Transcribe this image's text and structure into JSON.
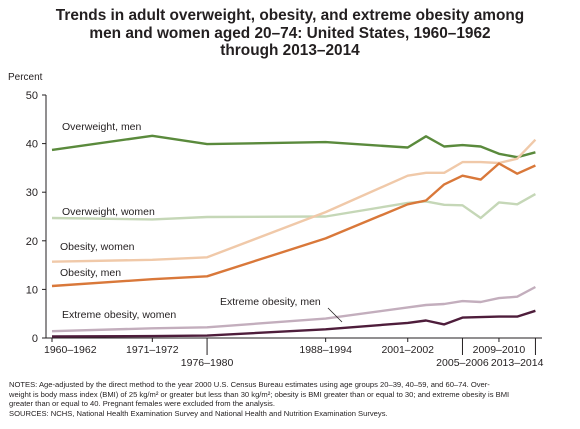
{
  "title_lines": [
    "Trends in adult overweight, obesity, and extreme obesity among",
    "men and women aged 20–74: United States, 1960–1962",
    "through 2013–2014"
  ],
  "notes_lines": [
    "NOTES: Age-adjusted by the direct method to the year 2000 U.S. Census Bureau estimates using age groups 20–39, 40–59, and 60–74. Over-",
    "weight is body mass index (BMI) of 25 kg/m² or greater but less than 30 kg/m²; obesity is BMI greater than or equal to 30; and extreme obesity is BMI",
    "greater than or equal to 40. Pregnant females were excluded from the analysis.",
    "SOURCES: NCHS, National Health Examination Survey and National Health and Nutrition Examination Surveys."
  ],
  "chart_data": {
    "type": "line",
    "title": "Trends in adult overweight, obesity, and extreme obesity among men and women aged 20–74: United States, 1960–1962 through 2013–2014",
    "ylabel": "Percent",
    "xlabel": "",
    "ylim": [
      0,
      50
    ],
    "yticks": [
      0,
      10,
      20,
      30,
      40,
      50
    ],
    "grid": false,
    "x": [
      1961,
      1972,
      1978,
      1991,
      2000,
      2002,
      2004,
      2006,
      2008,
      2010,
      2012,
      2014
    ],
    "xtick_labels": [
      {
        "x": 1961,
        "label": "1960–1962",
        "row": 1
      },
      {
        "x": 1972,
        "label": "1971–1972",
        "row": 1
      },
      {
        "x": 1978,
        "label": "1976–1980",
        "row": 2
      },
      {
        "x": 1991,
        "label": "1988–1994",
        "row": 1
      },
      {
        "x": 2000,
        "label": "2001–2002",
        "row": 1
      },
      {
        "x": 2006,
        "label": "2005–2006",
        "row": 2
      },
      {
        "x": 2010,
        "label": "2009–2010",
        "row": 1
      },
      {
        "x": 2014,
        "label": "2013–2014",
        "row": 2
      }
    ],
    "series": [
      {
        "name": "Overweight, men",
        "color": "#5a8a3c",
        "values": [
          38.7,
          41.6,
          39.9,
          40.3,
          39.2,
          41.5,
          39.4,
          39.7,
          39.4,
          37.9,
          37.2,
          38.2
        ]
      },
      {
        "name": "Overweight, women",
        "color": "#c5d7b7",
        "values": [
          24.7,
          24.4,
          24.9,
          25.0,
          27.8,
          28.1,
          27.4,
          27.3,
          24.7,
          27.9,
          27.5,
          29.6
        ]
      },
      {
        "name": "Obesity, women",
        "color": "#f0c9a9",
        "values": [
          15.7,
          16.1,
          16.6,
          25.9,
          33.4,
          34.0,
          34.0,
          36.2,
          36.2,
          36.0,
          36.9,
          40.8
        ]
      },
      {
        "name": "Obesity, men",
        "color": "#d9783a",
        "values": [
          10.7,
          12.1,
          12.7,
          20.5,
          27.5,
          28.3,
          31.6,
          33.4,
          32.6,
          35.9,
          33.8,
          35.5
        ]
      },
      {
        "name": "Extreme obesity, women",
        "color": "#c3aebd",
        "values": [
          1.4,
          2.0,
          2.2,
          4.0,
          6.3,
          6.8,
          7.0,
          7.6,
          7.4,
          8.2,
          8.5,
          10.5
        ]
      },
      {
        "name": "Extreme obesity, men",
        "color": "#4e1d3b",
        "values": [
          0.3,
          0.4,
          0.5,
          1.8,
          3.1,
          3.6,
          2.8,
          4.2,
          4.3,
          4.4,
          4.4,
          5.6
        ]
      }
    ]
  }
}
